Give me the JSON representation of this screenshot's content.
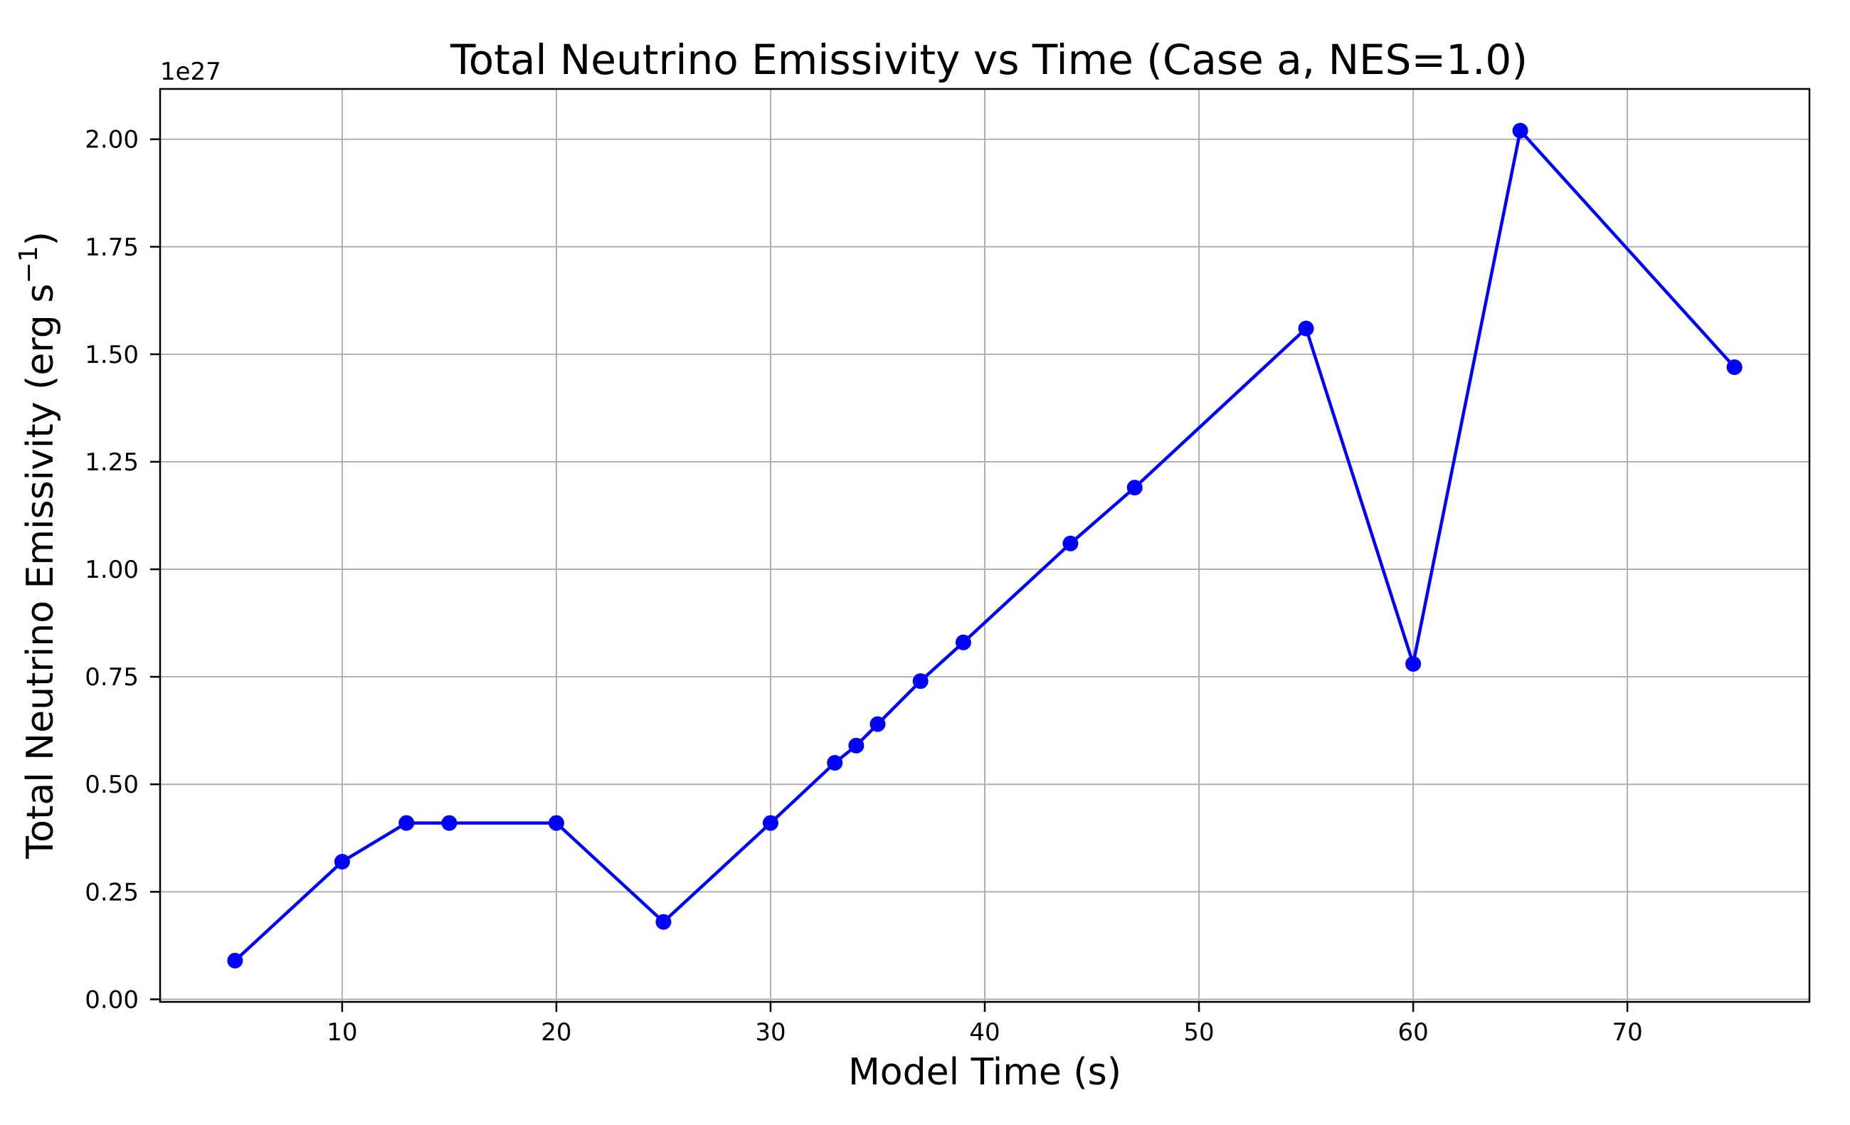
{
  "figure": {
    "background": "#ffffff",
    "title": "Total Neutrino Emissivity vs Time (Case a, NES=1.0)",
    "xlabel": "Model Time (s)",
    "ylabel_parts": [
      {
        "text": "Total Neutrino Emissivity (erg s",
        "sup": false
      },
      {
        "text": "−1",
        "sup": true
      },
      {
        "text": ")",
        "sup": false
      }
    ],
    "ylabel_full": "Total Neutrino Emissivity (erg s⁻¹)",
    "offset_text": "1e27"
  },
  "chart_data": {
    "type": "line",
    "title": "Total Neutrino Emissivity vs Time (Case a, NES=1.0)",
    "xlabel": "Model Time (s)",
    "ylabel": "Total Neutrino Emissivity (erg s⁻¹)",
    "series": [
      {
        "name": "Total neutrino emissivity",
        "x": [
          5,
          10,
          13,
          15,
          20,
          25,
          30,
          33,
          34,
          35,
          37,
          39,
          44,
          47,
          55,
          60,
          65,
          75
        ],
        "y_1e27": [
          0.09,
          0.32,
          0.41,
          0.41,
          0.41,
          0.18,
          0.41,
          0.55,
          0.59,
          0.64,
          0.74,
          0.83,
          1.06,
          1.19,
          1.56,
          0.78,
          2.02,
          1.47
        ]
      }
    ],
    "y_unit_multiplier_label": "1e27",
    "y_unit": "erg s^-1",
    "xlim": [
      1.5,
      78.5
    ],
    "ylim": [
      -0.006,
      2.117
    ],
    "xticks": [
      10,
      20,
      30,
      40,
      50,
      60,
      70
    ],
    "yticks": [
      0.0,
      0.25,
      0.5,
      0.75,
      1.0,
      1.25,
      1.5,
      1.75,
      2.0
    ],
    "ytick_labels": [
      "0.00",
      "0.25",
      "0.50",
      "0.75",
      "1.00",
      "1.25",
      "1.50",
      "1.75",
      "2.00"
    ],
    "grid": true,
    "legend": "none",
    "line_color": "#0000ff",
    "marker": "circle",
    "marker_color": "#0000ff",
    "grid_color": "#b0b0b0",
    "spine_color": "#000000",
    "text_color": "#000000"
  }
}
